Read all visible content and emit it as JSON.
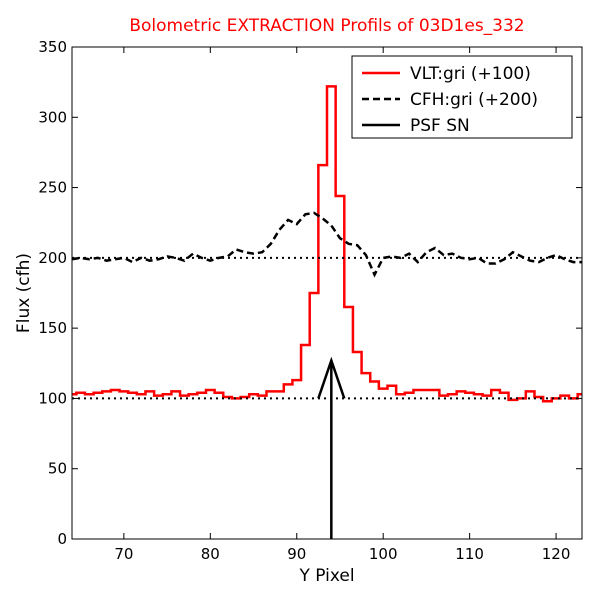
{
  "chart_data": {
    "type": "line",
    "title": "Bolometric EXTRACTION Profils of 03D1es_332",
    "title_color": "#ff0000",
    "xlabel": "Y Pixel",
    "ylabel": "Flux (cfh)",
    "xlim": [
      64,
      123
    ],
    "ylim": [
      0,
      350
    ],
    "xticks": [
      70,
      80,
      90,
      100,
      110,
      120
    ],
    "yticks": [
      0,
      50,
      100,
      150,
      200,
      250,
      300,
      350
    ],
    "legend_position": "top-right",
    "reference_lines": [
      {
        "name": "baseline-100",
        "y": 100,
        "style": "dotted",
        "color": "#000000"
      },
      {
        "name": "baseline-200",
        "y": 200,
        "style": "dotted",
        "color": "#000000"
      }
    ],
    "series": [
      {
        "name": "VLT:gri (+100)",
        "color": "#ff0000",
        "style": "steps-mid",
        "x": [
          64,
          65,
          66,
          67,
          68,
          69,
          70,
          71,
          72,
          73,
          74,
          75,
          76,
          77,
          78,
          79,
          80,
          81,
          82,
          83,
          84,
          85,
          86,
          87,
          88,
          89,
          90,
          91,
          92,
          93,
          94,
          95,
          96,
          97,
          98,
          99,
          100,
          101,
          102,
          103,
          104,
          105,
          106,
          107,
          108,
          109,
          110,
          111,
          112,
          113,
          114,
          115,
          116,
          117,
          118,
          119,
          120,
          121,
          122,
          123
        ],
        "y": [
          103,
          104,
          103,
          104,
          105,
          106,
          105,
          104,
          103,
          105,
          102,
          103,
          105,
          102,
          103,
          104,
          106,
          104,
          101,
          100,
          101,
          103,
          102,
          105,
          105,
          110,
          113,
          138,
          175,
          266,
          322,
          244,
          165,
          133,
          118,
          112,
          107,
          109,
          103,
          104,
          106,
          106,
          106,
          102,
          103,
          105,
          104,
          103,
          102,
          106,
          104,
          99,
          100,
          105,
          101,
          98,
          100,
          102,
          100,
          103
        ]
      },
      {
        "name": "CFH:gri (+200)",
        "color": "#000000",
        "style": "dashed",
        "x": [
          64,
          65,
          66,
          67,
          68,
          69,
          70,
          71,
          72,
          73,
          74,
          75,
          76,
          77,
          78,
          79,
          80,
          81,
          82,
          83,
          84,
          85,
          86,
          87,
          88,
          89,
          90,
          91,
          92,
          93,
          94,
          95,
          96,
          97,
          98,
          99,
          100,
          101,
          102,
          103,
          104,
          105,
          106,
          107,
          108,
          109,
          110,
          111,
          112,
          113,
          114,
          115,
          116,
          117,
          118,
          119,
          120,
          121,
          122,
          123
        ],
        "y": [
          199,
          200,
          199,
          200,
          198,
          199,
          200,
          197,
          200,
          198,
          199,
          201,
          200,
          198,
          203,
          200,
          198,
          200,
          201,
          206,
          204,
          203,
          204,
          210,
          220,
          227,
          224,
          231,
          232,
          228,
          223,
          214,
          210,
          209,
          202,
          188,
          200,
          201,
          200,
          203,
          197,
          204,
          207,
          202,
          203,
          200,
          199,
          200,
          196,
          196,
          199,
          204,
          201,
          198,
          197,
          200,
          202,
          199,
          197,
          197
        ]
      },
      {
        "name": "PSF SN",
        "color": "#000000",
        "style": "arrow",
        "x": 94,
        "y_start": 0,
        "y_end": 127,
        "head_halfwidth": 1.5,
        "head_length": 27
      }
    ]
  }
}
